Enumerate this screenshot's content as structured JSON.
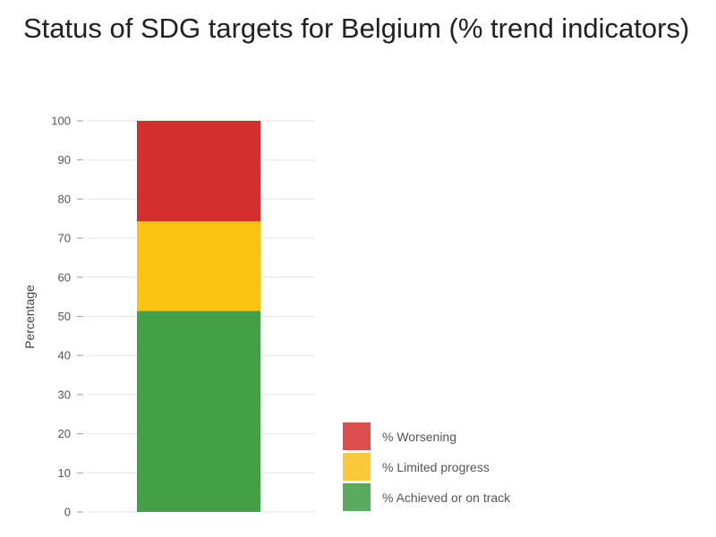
{
  "chart_data": {
    "type": "bar",
    "stacked": true,
    "title": "Status of SDG targets for Belgium (% trend indicators)",
    "xlabel": "",
    "ylabel": "Percentage",
    "ylim": [
      0,
      100
    ],
    "yticks": [
      0,
      10,
      20,
      30,
      40,
      50,
      60,
      70,
      80,
      90,
      100
    ],
    "grid": true,
    "legend_position": "bottom-right",
    "categories": [
      ""
    ],
    "series": [
      {
        "name": "% Achieved or on track",
        "values": [
          51.4
        ],
        "color": "#43a047"
      },
      {
        "name": "% Limited progress",
        "values": [
          22.9
        ],
        "color": "#fbc311"
      },
      {
        "name": "% Worsening",
        "values": [
          25.7
        ],
        "color": "#d32f2f"
      }
    ],
    "legend_colors": {
      "% Worsening": "#db4f4c",
      "% Limited progress": "#fcc93a",
      "% Achieved or on track": "#5aaa5f"
    }
  }
}
